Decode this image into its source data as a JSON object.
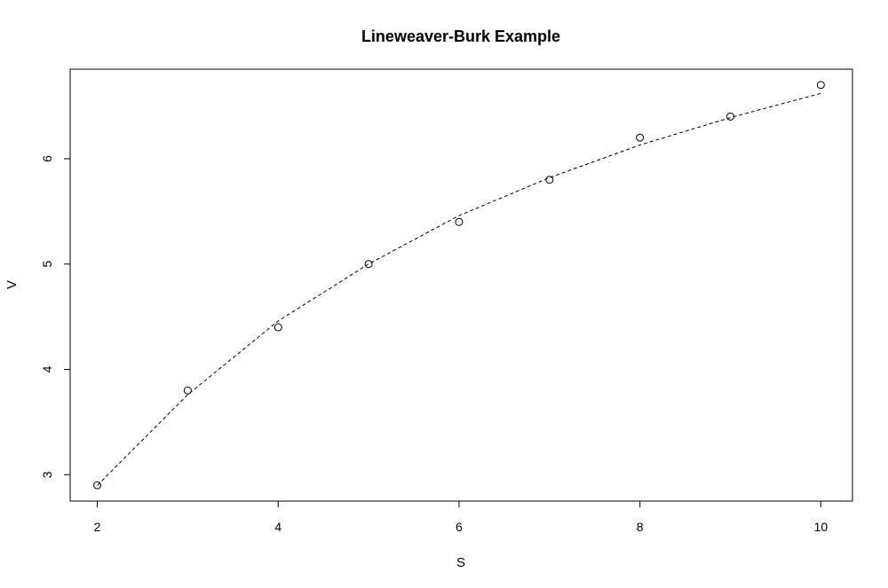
{
  "chart_data": {
    "type": "scatter",
    "title": "Lineweaver-Burk Example",
    "xlabel": "S",
    "ylabel": "V",
    "xlim": [
      1.7,
      10.35
    ],
    "ylim": [
      2.75,
      6.85
    ],
    "xticks": [
      2,
      4,
      6,
      8,
      10
    ],
    "yticks": [
      3,
      4,
      5,
      6
    ],
    "grid": false,
    "points": {
      "x": [
        2,
        3,
        4,
        5,
        6,
        7,
        8,
        9,
        10
      ],
      "y": [
        2.9,
        3.8,
        4.4,
        5.0,
        5.4,
        5.8,
        6.2,
        6.4,
        6.7
      ]
    },
    "fit_curve": {
      "style": "dashed",
      "x": [
        2,
        3,
        4,
        5,
        6,
        7,
        8,
        9,
        10
      ],
      "y": [
        2.9,
        3.76,
        4.46,
        5.0,
        5.46,
        5.82,
        6.13,
        6.39,
        6.62
      ]
    }
  }
}
